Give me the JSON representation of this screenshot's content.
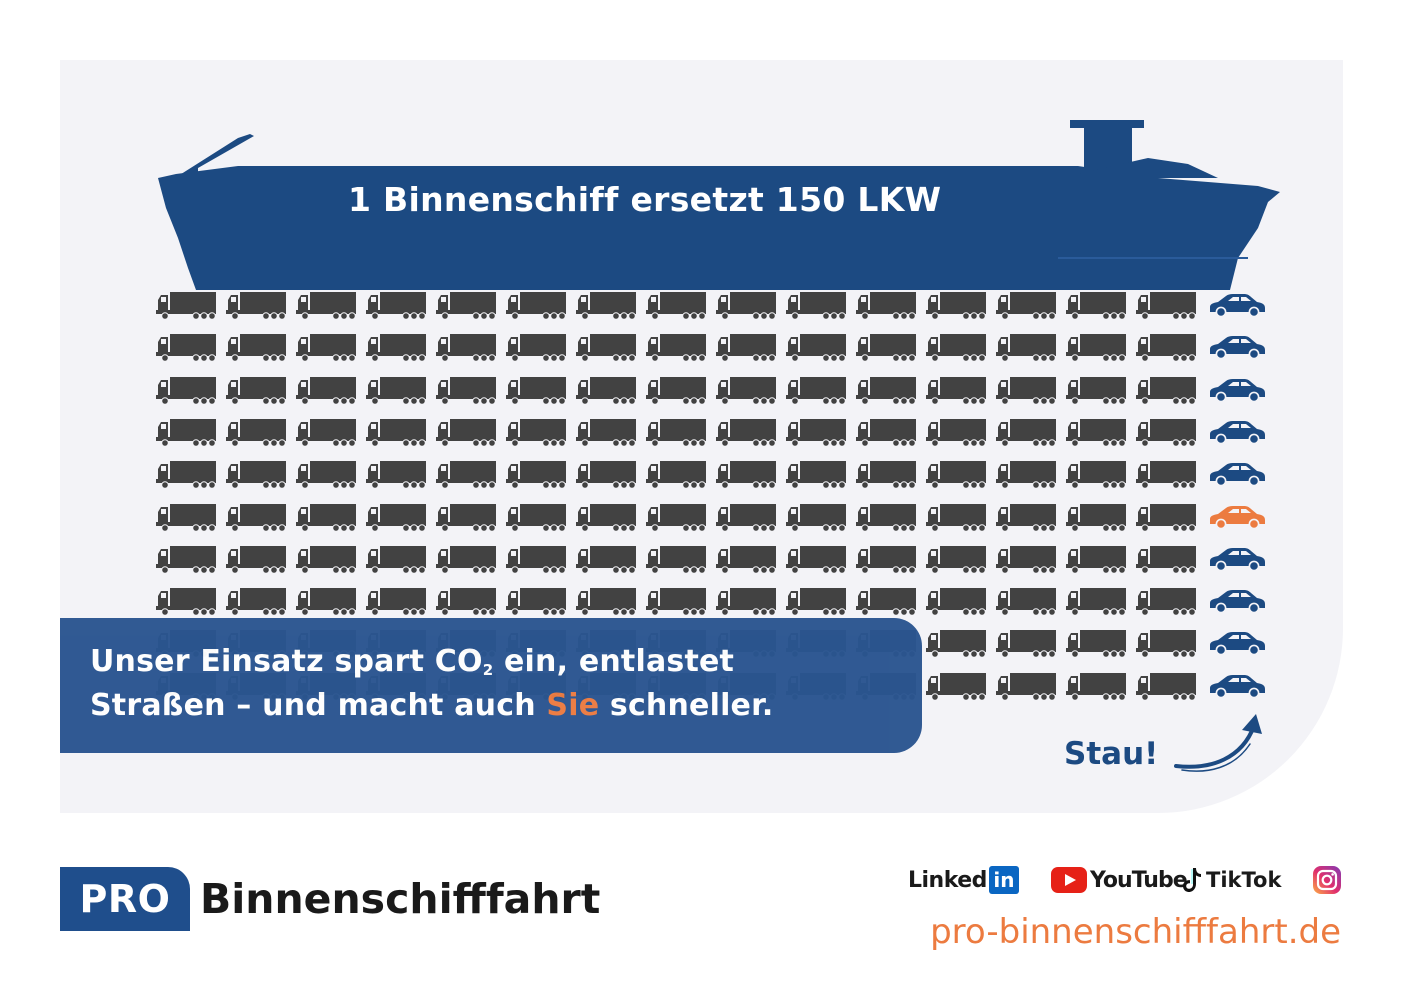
{
  "colors": {
    "panel_bg": "#f3f3f7",
    "navy": "#1c4a82",
    "truck": "#424242",
    "car_blue": "#1c4a82",
    "car_orange": "#ec7b40",
    "claim_bg": "#2a5590",
    "orange": "#ec7b40"
  },
  "ship": {
    "title": "1 Binnenschiff ersetzt 150 LKW"
  },
  "fleet": {
    "rows": 10,
    "truck_columns": 15,
    "car_column": 1,
    "trucks_total": 150,
    "highlighted_car_row": 6,
    "icons": {
      "truck": "truck-icon",
      "car": "car-icon"
    }
  },
  "claim": {
    "line1_before": "Unser Einsatz spart CO",
    "line1_subscript": "2",
    "line1_after": " ein, entlastet",
    "line2_before": "Straßen – und macht auch ",
    "line2_highlight": "Sie",
    "line2_after": " schneller."
  },
  "stau": {
    "label": "Stau!"
  },
  "brand": {
    "pro": "PRO",
    "name": "Binnenschifffahrt"
  },
  "social": {
    "linkedin_text": "Linked",
    "linkedin_box": "in",
    "youtube": "YouTube",
    "tiktok": "TikTok",
    "instagram_icon": "instagram-icon"
  },
  "url": "pro-binnenschifffahrt.de"
}
